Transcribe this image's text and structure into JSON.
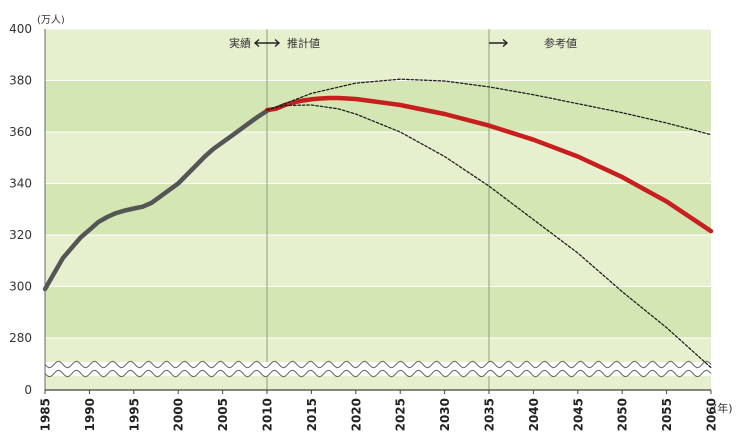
{
  "chart_data": {
    "type": "line",
    "title": "",
    "ylabel": "(万人)",
    "xlabel": "(年)",
    "ylim": [
      0,
      400
    ],
    "y_axis_break": [
      0,
      270
    ],
    "grid": true,
    "y_ticks": [
      0,
      280,
      300,
      320,
      340,
      360,
      380,
      400
    ],
    "x_ticks": [
      1985,
      1990,
      1995,
      2000,
      2005,
      2010,
      2015,
      2020,
      2025,
      2030,
      2035,
      2040,
      2045,
      2050,
      2055,
      2060
    ],
    "xlim": [
      1985,
      2060
    ],
    "annotations": {
      "actual": "実績",
      "estimate": "推計値",
      "reference": "参考値"
    },
    "section_boundaries": [
      2010,
      2035
    ],
    "series": [
      {
        "role": "actual",
        "color": "#555555",
        "style": "solid",
        "points": [
          [
            1985,
            299
          ],
          [
            1986,
            305
          ],
          [
            1987,
            311
          ],
          [
            1988,
            315
          ],
          [
            1989,
            319
          ],
          [
            1990,
            322
          ],
          [
            1991,
            325
          ],
          [
            1992,
            327
          ],
          [
            1993,
            328.5
          ],
          [
            1994,
            329.5
          ],
          [
            1995,
            330.3
          ],
          [
            1996,
            331
          ],
          [
            1997,
            332.5
          ],
          [
            1998,
            335
          ],
          [
            1999,
            337.5
          ],
          [
            2000,
            340
          ],
          [
            2001,
            343.5
          ],
          [
            2002,
            347
          ],
          [
            2003,
            350.5
          ],
          [
            2004,
            353.5
          ],
          [
            2005,
            356
          ],
          [
            2006,
            358.5
          ],
          [
            2007,
            361
          ],
          [
            2008,
            363.5
          ],
          [
            2009,
            366
          ],
          [
            2010,
            368.2
          ]
        ]
      },
      {
        "role": "estimate",
        "color": "#c81e1e",
        "style": "solid",
        "points": [
          [
            2010,
            368.5
          ],
          [
            2011,
            369
          ],
          [
            2012,
            370.5
          ],
          [
            2013,
            371.5
          ],
          [
            2014,
            372.2
          ],
          [
            2015,
            372.7
          ],
          [
            2016,
            373
          ],
          [
            2017,
            373.2
          ],
          [
            2018,
            373.2
          ],
          [
            2019,
            373
          ],
          [
            2020,
            372.8
          ],
          [
            2025,
            370.5
          ],
          [
            2030,
            367
          ],
          [
            2035,
            362.5
          ],
          [
            2040,
            357
          ],
          [
            2045,
            350.5
          ],
          [
            2050,
            342.5
          ],
          [
            2055,
            333
          ],
          [
            2060,
            321.5
          ]
        ]
      },
      {
        "role": "upper-bound",
        "color": "#222222",
        "style": "dotted",
        "points": [
          [
            2010,
            368.5
          ],
          [
            2012,
            371
          ],
          [
            2015,
            375
          ],
          [
            2020,
            379
          ],
          [
            2025,
            380.5
          ],
          [
            2030,
            379.8
          ],
          [
            2035,
            377.5
          ],
          [
            2040,
            374.5
          ],
          [
            2045,
            371
          ],
          [
            2050,
            367.5
          ],
          [
            2055,
            363.5
          ],
          [
            2060,
            359
          ]
        ]
      },
      {
        "role": "lower-bound",
        "color": "#222222",
        "style": "dotted",
        "points": [
          [
            2010,
            368.5
          ],
          [
            2012,
            370.3
          ],
          [
            2015,
            370.5
          ],
          [
            2018,
            369
          ],
          [
            2020,
            367
          ],
          [
            2025,
            360
          ],
          [
            2030,
            350.5
          ],
          [
            2035,
            339
          ],
          [
            2040,
            326
          ],
          [
            2045,
            313
          ],
          [
            2050,
            298
          ],
          [
            2055,
            284
          ],
          [
            2060,
            268.5
          ]
        ]
      }
    ]
  }
}
